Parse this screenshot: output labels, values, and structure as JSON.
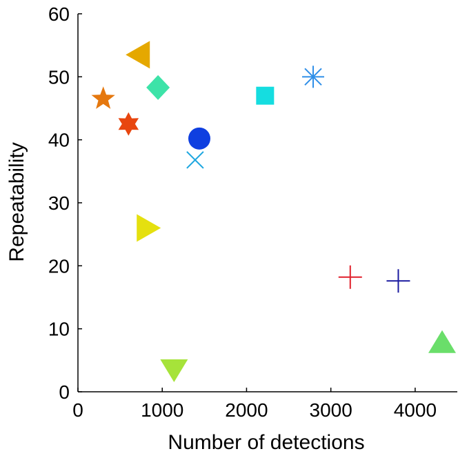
{
  "chart_data": {
    "type": "scatter",
    "title": "",
    "xlabel": "Number of detections",
    "ylabel": "Repeatability",
    "xlim": [
      0,
      4500
    ],
    "ylim": [
      0,
      60
    ],
    "xticks": [
      0,
      1000,
      2000,
      3000,
      4000
    ],
    "yticks": [
      0,
      10,
      20,
      30,
      40,
      50,
      60
    ],
    "xtick_labels": [
      "0",
      "1000",
      "2000",
      "3000",
      "4000"
    ],
    "ytick_labels": [
      "0",
      "10",
      "20",
      "30",
      "40",
      "50",
      "60"
    ],
    "grid": false,
    "points": [
      {
        "x": 730,
        "y": 53.5,
        "marker": "triangle-left",
        "color": "#E5A800"
      },
      {
        "x": 300,
        "y": 46.5,
        "marker": "pentagram",
        "color": "#E5780F"
      },
      {
        "x": 600,
        "y": 42.5,
        "marker": "hexagram",
        "color": "#E8460F"
      },
      {
        "x": 950,
        "y": 48.3,
        "marker": "diamond",
        "color": "#3DE3A8"
      },
      {
        "x": 2220,
        "y": 47.0,
        "marker": "square",
        "color": "#15DDE0"
      },
      {
        "x": 2790,
        "y": 50.0,
        "marker": "asterisk",
        "color": "#2F8FE8"
      },
      {
        "x": 1440,
        "y": 40.2,
        "marker": "circle",
        "color": "#0F3FE0"
      },
      {
        "x": 1390,
        "y": 36.8,
        "marker": "x",
        "color": "#20A8E0"
      },
      {
        "x": 820,
        "y": 26.0,
        "marker": "triangle-right",
        "color": "#E5E00F"
      },
      {
        "x": 3230,
        "y": 18.2,
        "marker": "plus",
        "color": "#E01F2A"
      },
      {
        "x": 3800,
        "y": 17.6,
        "marker": "plus",
        "color": "#1A1AA0"
      },
      {
        "x": 4320,
        "y": 7.8,
        "marker": "triangle-up",
        "color": "#6ADE6A"
      },
      {
        "x": 1140,
        "y": 3.5,
        "marker": "triangle-down",
        "color": "#A6E33A"
      }
    ]
  }
}
